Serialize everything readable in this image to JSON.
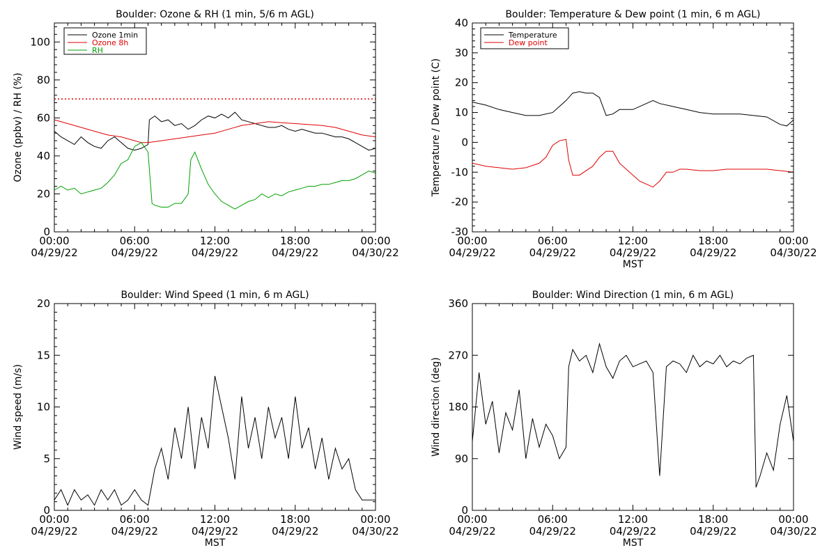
{
  "chart_data": [
    {
      "type": "line",
      "title": "Boulder: Ozone & RH (1 min, 5/6 m AGL)",
      "xlabel": "",
      "ylabel": "Ozone (ppbv) / RH (%)",
      "xlim": [
        0,
        24
      ],
      "ylim": [
        0,
        110
      ],
      "xticks": [
        {
          "value": 0,
          "time": "00:00",
          "date": "04/29/22"
        },
        {
          "value": 6,
          "time": "06:00",
          "date": "04/29/22"
        },
        {
          "value": 12,
          "time": "12:00",
          "date": "04/29/22"
        },
        {
          "value": 18,
          "time": "18:00",
          "date": "04/29/22"
        },
        {
          "value": 24,
          "time": "00:00",
          "date": "04/30/22"
        }
      ],
      "yticks": [
        0,
        20,
        40,
        60,
        80,
        100
      ],
      "legend_position": "top-left",
      "reference_lines": [
        {
          "y": 70,
          "color": "#e00000",
          "style": "dotted"
        }
      ],
      "series": [
        {
          "name": "Ozone 1min",
          "color": "#000000",
          "x": [
            0,
            0.5,
            1,
            1.5,
            2,
            2.5,
            3,
            3.5,
            4,
            4.5,
            5,
            5.5,
            6,
            6.5,
            7,
            7.1,
            7.5,
            8,
            8.5,
            9,
            9.5,
            10,
            10.5,
            11,
            11.5,
            12,
            12.5,
            13,
            13.5,
            14,
            14.5,
            15,
            15.5,
            16,
            16.5,
            17,
            17.5,
            18,
            18.5,
            19,
            19.5,
            20,
            20.5,
            21,
            21.5,
            22,
            22.5,
            23,
            23.5,
            24
          ],
          "y": [
            53,
            50,
            48,
            46,
            50,
            47,
            45,
            44,
            48,
            50,
            47,
            44,
            43,
            44,
            46,
            59,
            61,
            58,
            59,
            56,
            57,
            54,
            56,
            59,
            61,
            60,
            62,
            60,
            63,
            59,
            58,
            57,
            56,
            55,
            55,
            56,
            54,
            53,
            54,
            53,
            52,
            52,
            51,
            50,
            50,
            49,
            47,
            45,
            43,
            44
          ]
        },
        {
          "name": "Ozone 8h",
          "color": "#e00000",
          "x": [
            0,
            1,
            2,
            3,
            4,
            5,
            6,
            6.5,
            7,
            8,
            9,
            10,
            11,
            12,
            13,
            14,
            15,
            16,
            17,
            18,
            19,
            20,
            21,
            22,
            23,
            24
          ],
          "y": [
            59,
            57,
            55,
            53,
            51,
            50,
            48,
            47,
            47,
            48,
            49,
            50,
            51,
            52,
            54,
            56,
            57,
            58,
            57.5,
            57,
            56.5,
            56,
            55,
            53,
            51,
            50
          ]
        },
        {
          "name": "RH",
          "color": "#00a000",
          "x": [
            0,
            0.5,
            1,
            1.5,
            2,
            2.5,
            3,
            3.5,
            4,
            4.5,
            5,
            5.5,
            6,
            6.5,
            7,
            7.3,
            7.5,
            8,
            8.5,
            9,
            9.5,
            10,
            10.2,
            10.5,
            11,
            11.5,
            12,
            12.5,
            13,
            13.5,
            14,
            14.5,
            15,
            15.5,
            16,
            16.5,
            17,
            17.5,
            18,
            18.5,
            19,
            19.5,
            20,
            20.5,
            21,
            21.5,
            22,
            22.5,
            23,
            23.5,
            24
          ],
          "y": [
            22,
            24,
            22,
            23,
            20,
            21,
            22,
            23,
            26,
            30,
            36,
            38,
            45,
            47,
            42,
            15,
            14,
            13,
            13,
            15,
            15,
            20,
            38,
            42,
            33,
            25,
            20,
            16,
            14,
            12,
            14,
            16,
            17,
            20,
            18,
            20,
            19,
            21,
            22,
            23,
            24,
            24,
            25,
            25,
            26,
            27,
            27,
            28,
            30,
            32,
            31
          ]
        }
      ]
    },
    {
      "type": "line",
      "title": "Boulder: Temperature & Dew point (1 min, 6 m AGL)",
      "xlabel": "MST",
      "ylabel": "Temperature / Dew point (C)",
      "xlim": [
        0,
        24
      ],
      "ylim": [
        -30,
        40
      ],
      "xticks": [
        {
          "value": 0,
          "time": "00:00",
          "date": "04/29/22"
        },
        {
          "value": 6,
          "time": "06:00",
          "date": "04/29/22"
        },
        {
          "value": 12,
          "time": "12:00",
          "date": "04/29/22"
        },
        {
          "value": 18,
          "time": "18:00",
          "date": "04/29/22"
        },
        {
          "value": 24,
          "time": "00:00",
          "date": "04/30/22"
        }
      ],
      "yticks": [
        -30,
        -20,
        -10,
        0,
        10,
        20,
        30,
        40
      ],
      "legend_position": "top-left",
      "series": [
        {
          "name": "Temperature",
          "color": "#000000",
          "x": [
            0,
            1,
            2,
            3,
            4,
            5,
            6,
            6.5,
            7,
            7.5,
            8,
            8.5,
            9,
            9.5,
            10,
            10.5,
            11,
            12,
            13,
            13.5,
            14,
            15,
            16,
            17,
            18,
            19,
            20,
            21,
            22,
            23,
            23.5,
            24
          ],
          "y": [
            13.5,
            12.5,
            11,
            10,
            9,
            9,
            10,
            12,
            14,
            16.5,
            17,
            16.5,
            16.5,
            15,
            9,
            9.5,
            11,
            11,
            13,
            14,
            13,
            12,
            11,
            10,
            9.5,
            9.5,
            9.5,
            9,
            8.5,
            6,
            5.5,
            7.5
          ]
        },
        {
          "name": "Dew point",
          "color": "#e00000",
          "x": [
            0,
            1,
            2,
            3,
            4,
            5,
            5.5,
            6,
            6.5,
            7,
            7.2,
            7.5,
            8,
            9,
            9.5,
            10,
            10.5,
            11,
            11.5,
            12,
            12.5,
            13,
            13.5,
            14,
            14.5,
            15,
            15.5,
            16,
            17,
            18,
            19,
            20,
            21,
            22,
            23,
            24
          ],
          "y": [
            -7,
            -8,
            -8.5,
            -9,
            -8.5,
            -7,
            -5,
            -1,
            0.5,
            1,
            -6,
            -11,
            -11,
            -8,
            -5,
            -3,
            -3,
            -7,
            -9,
            -11,
            -13,
            -14,
            -15,
            -13,
            -10,
            -10,
            -9,
            -9,
            -9.5,
            -9.5,
            -9,
            -9,
            -9,
            -9,
            -9.5,
            -10
          ]
        }
      ]
    },
    {
      "type": "line",
      "title": "Boulder: Wind Speed (1 min, 6 m AGL)",
      "xlabel": "MST",
      "ylabel": "Wind speed (m/s)",
      "xlim": [
        0,
        24
      ],
      "ylim": [
        0,
        20
      ],
      "xticks": [
        {
          "value": 0,
          "time": "00:00",
          "date": "04/29/22"
        },
        {
          "value": 6,
          "time": "06:00",
          "date": "04/29/22"
        },
        {
          "value": 12,
          "time": "12:00",
          "date": "04/29/22"
        },
        {
          "value": 18,
          "time": "18:00",
          "date": "04/29/22"
        },
        {
          "value": 24,
          "time": "00:00",
          "date": "04/30/22"
        }
      ],
      "yticks": [
        0,
        5,
        10,
        15,
        20
      ],
      "series": [
        {
          "name": "",
          "color": "#000000",
          "x": [
            0,
            0.5,
            1,
            1.5,
            2,
            2.5,
            3,
            3.5,
            4,
            4.5,
            5,
            5.5,
            6,
            6.5,
            7,
            7.5,
            8,
            8.5,
            9,
            9.5,
            10,
            10.5,
            11,
            11.5,
            12,
            12.5,
            13,
            13.5,
            14,
            14.5,
            15,
            15.5,
            16,
            16.5,
            17,
            17.5,
            18,
            18.5,
            19,
            19.5,
            20,
            20.5,
            21,
            21.5,
            22,
            22.5,
            23,
            23.5,
            24
          ],
          "y": [
            1,
            2,
            0.5,
            2,
            1,
            1.5,
            0.5,
            2,
            1,
            2,
            0.5,
            1,
            2,
            1,
            0.5,
            4,
            6,
            3,
            8,
            5,
            10,
            4,
            9,
            6,
            13,
            10,
            7,
            3,
            11,
            6,
            9,
            5,
            10,
            7,
            9,
            5,
            11,
            6,
            8,
            4,
            7,
            3,
            6,
            4,
            5,
            2,
            1,
            1,
            1
          ]
        }
      ]
    },
    {
      "type": "line",
      "title": "Boulder: Wind Direction (1 min, 6 m AGL)",
      "xlabel": "MST",
      "ylabel": "Wind direction (deg)",
      "xlim": [
        0,
        24
      ],
      "ylim": [
        0,
        360
      ],
      "xticks": [
        {
          "value": 0,
          "time": "00:00",
          "date": "04/29/22"
        },
        {
          "value": 6,
          "time": "06:00",
          "date": "04/29/22"
        },
        {
          "value": 12,
          "time": "12:00",
          "date": "04/29/22"
        },
        {
          "value": 18,
          "time": "18:00",
          "date": "04/29/22"
        },
        {
          "value": 24,
          "time": "00:00",
          "date": "04/30/22"
        }
      ],
      "yticks": [
        0,
        90,
        180,
        270,
        360
      ],
      "series": [
        {
          "name": "",
          "color": "#000000",
          "x": [
            0,
            0.5,
            1,
            1.5,
            2,
            2.5,
            3,
            3.5,
            4,
            4.5,
            5,
            5.5,
            6,
            6.5,
            7,
            7.2,
            7.5,
            8,
            8.5,
            9,
            9.5,
            10,
            10.5,
            11,
            11.5,
            12,
            12.5,
            13,
            13.5,
            14,
            14.5,
            15,
            15.5,
            16,
            16.5,
            17,
            17.5,
            18,
            18.5,
            19,
            19.5,
            20,
            20.5,
            21,
            21.2,
            21.5,
            22,
            22.5,
            23,
            23.5,
            24
          ],
          "y": [
            120,
            240,
            150,
            190,
            100,
            170,
            140,
            210,
            90,
            160,
            110,
            150,
            130,
            90,
            110,
            250,
            280,
            260,
            270,
            240,
            290,
            250,
            230,
            260,
            270,
            250,
            255,
            260,
            240,
            60,
            250,
            260,
            255,
            240,
            270,
            250,
            260,
            255,
            270,
            250,
            260,
            255,
            265,
            270,
            40,
            60,
            100,
            70,
            150,
            200,
            120
          ]
        }
      ]
    }
  ],
  "legend_texts": [
    {
      "text": "Ozone 1min",
      "color": "#000000"
    },
    {
      "text": "Ozone 8h",
      "color": "#e00000"
    },
    {
      "text": "RH",
      "color": "#00a000"
    },
    {
      "text": "Temperature",
      "color": "#000000"
    },
    {
      "text": "Dew point",
      "color": "#e00000"
    }
  ]
}
